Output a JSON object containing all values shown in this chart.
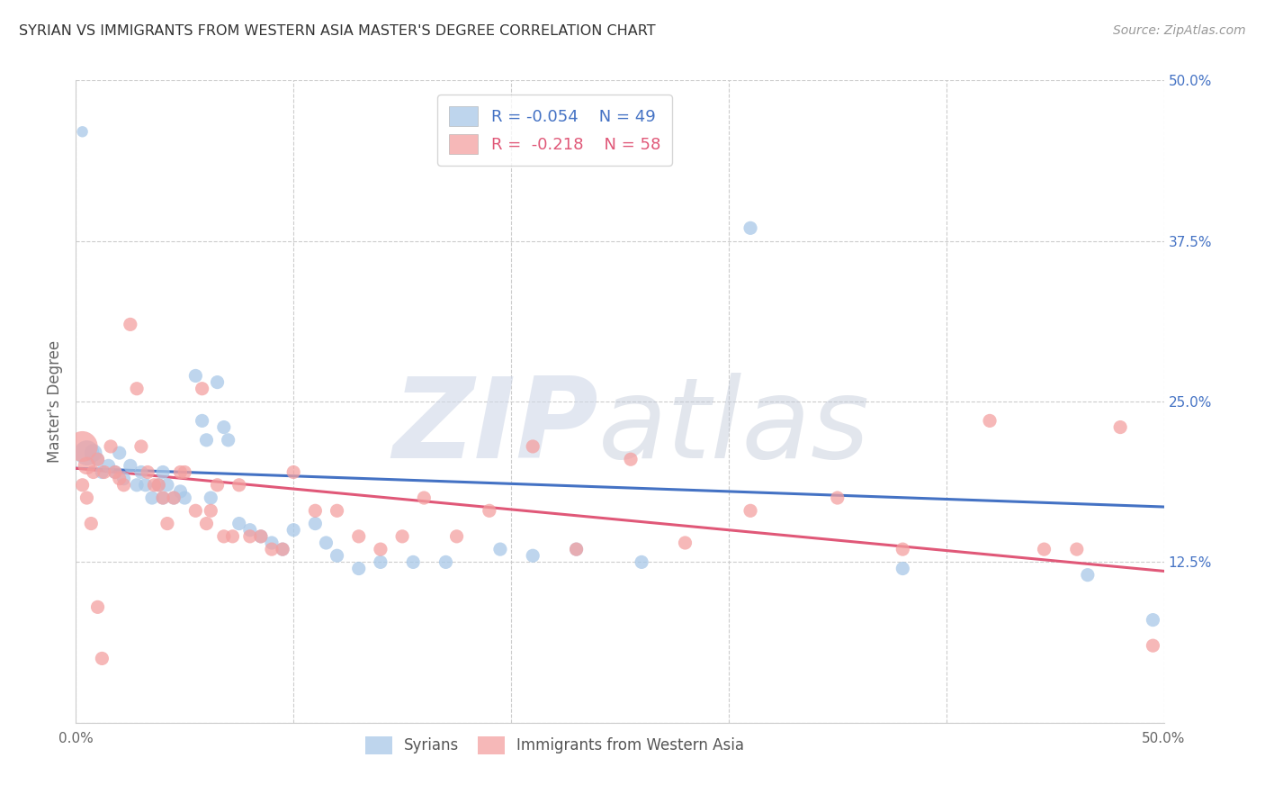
{
  "title": "SYRIAN VS IMMIGRANTS FROM WESTERN ASIA MASTER'S DEGREE CORRELATION CHART",
  "source": "Source: ZipAtlas.com",
  "ylabel": "Master's Degree",
  "xlim": [
    0.0,
    0.5
  ],
  "ylim": [
    0.0,
    0.5
  ],
  "legend_blue_R": "-0.054",
  "legend_blue_N": "49",
  "legend_pink_R": "-0.218",
  "legend_pink_N": "58",
  "blue_color": "#a8c8e8",
  "pink_color": "#f4a0a0",
  "line_blue_color": "#4472c4",
  "line_pink_color": "#e05878",
  "background_color": "#ffffff",
  "grid_color": "#cccccc",
  "blue_scatter_x": [
    0.003,
    0.005,
    0.008,
    0.01,
    0.012,
    0.015,
    0.018,
    0.02,
    0.022,
    0.025,
    0.028,
    0.03,
    0.032,
    0.035,
    0.038,
    0.04,
    0.04,
    0.042,
    0.045,
    0.048,
    0.05,
    0.055,
    0.058,
    0.06,
    0.062,
    0.065,
    0.068,
    0.07,
    0.075,
    0.08,
    0.085,
    0.09,
    0.095,
    0.1,
    0.11,
    0.115,
    0.12,
    0.13,
    0.14,
    0.155,
    0.17,
    0.195,
    0.21,
    0.23,
    0.26,
    0.31,
    0.38,
    0.465,
    0.495
  ],
  "blue_scatter_y": [
    0.46,
    0.21,
    0.21,
    0.205,
    0.195,
    0.2,
    0.195,
    0.21,
    0.19,
    0.2,
    0.185,
    0.195,
    0.185,
    0.175,
    0.185,
    0.175,
    0.195,
    0.185,
    0.175,
    0.18,
    0.175,
    0.27,
    0.235,
    0.22,
    0.175,
    0.265,
    0.23,
    0.22,
    0.155,
    0.15,
    0.145,
    0.14,
    0.135,
    0.15,
    0.155,
    0.14,
    0.13,
    0.12,
    0.125,
    0.125,
    0.125,
    0.135,
    0.13,
    0.135,
    0.125,
    0.385,
    0.12,
    0.115,
    0.08
  ],
  "blue_scatter_size": [
    80,
    400,
    200,
    120,
    120,
    120,
    120,
    120,
    120,
    120,
    120,
    120,
    120,
    120,
    120,
    120,
    120,
    120,
    120,
    120,
    120,
    120,
    120,
    120,
    120,
    120,
    120,
    120,
    120,
    120,
    120,
    120,
    120,
    120,
    120,
    120,
    120,
    120,
    120,
    120,
    120,
    120,
    120,
    120,
    120,
    120,
    120,
    120,
    120
  ],
  "pink_scatter_x": [
    0.003,
    0.005,
    0.008,
    0.01,
    0.013,
    0.016,
    0.018,
    0.02,
    0.022,
    0.025,
    0.028,
    0.03,
    0.033,
    0.036,
    0.038,
    0.04,
    0.042,
    0.045,
    0.048,
    0.05,
    0.055,
    0.058,
    0.06,
    0.062,
    0.065,
    0.068,
    0.072,
    0.075,
    0.08,
    0.085,
    0.09,
    0.095,
    0.1,
    0.11,
    0.12,
    0.13,
    0.14,
    0.15,
    0.16,
    0.175,
    0.19,
    0.21,
    0.23,
    0.255,
    0.28,
    0.31,
    0.35,
    0.38,
    0.42,
    0.445,
    0.46,
    0.48,
    0.495,
    0.003,
    0.005,
    0.007,
    0.01,
    0.012
  ],
  "pink_scatter_y": [
    0.215,
    0.2,
    0.195,
    0.205,
    0.195,
    0.215,
    0.195,
    0.19,
    0.185,
    0.31,
    0.26,
    0.215,
    0.195,
    0.185,
    0.185,
    0.175,
    0.155,
    0.175,
    0.195,
    0.195,
    0.165,
    0.26,
    0.155,
    0.165,
    0.185,
    0.145,
    0.145,
    0.185,
    0.145,
    0.145,
    0.135,
    0.135,
    0.195,
    0.165,
    0.165,
    0.145,
    0.135,
    0.145,
    0.175,
    0.145,
    0.165,
    0.215,
    0.135,
    0.205,
    0.14,
    0.165,
    0.175,
    0.135,
    0.235,
    0.135,
    0.135,
    0.23,
    0.06,
    0.185,
    0.175,
    0.155,
    0.09,
    0.05
  ],
  "pink_scatter_size": [
    600,
    200,
    120,
    120,
    120,
    120,
    120,
    120,
    120,
    120,
    120,
    120,
    120,
    120,
    120,
    120,
    120,
    120,
    120,
    120,
    120,
    120,
    120,
    120,
    120,
    120,
    120,
    120,
    120,
    120,
    120,
    120,
    120,
    120,
    120,
    120,
    120,
    120,
    120,
    120,
    120,
    120,
    120,
    120,
    120,
    120,
    120,
    120,
    120,
    120,
    120,
    120,
    120,
    120,
    120,
    120,
    120,
    120
  ],
  "blue_line_x": [
    0.0,
    0.5
  ],
  "blue_line_y": [
    0.198,
    0.168
  ],
  "pink_line_x": [
    0.0,
    0.5
  ],
  "pink_line_y": [
    0.198,
    0.118
  ]
}
